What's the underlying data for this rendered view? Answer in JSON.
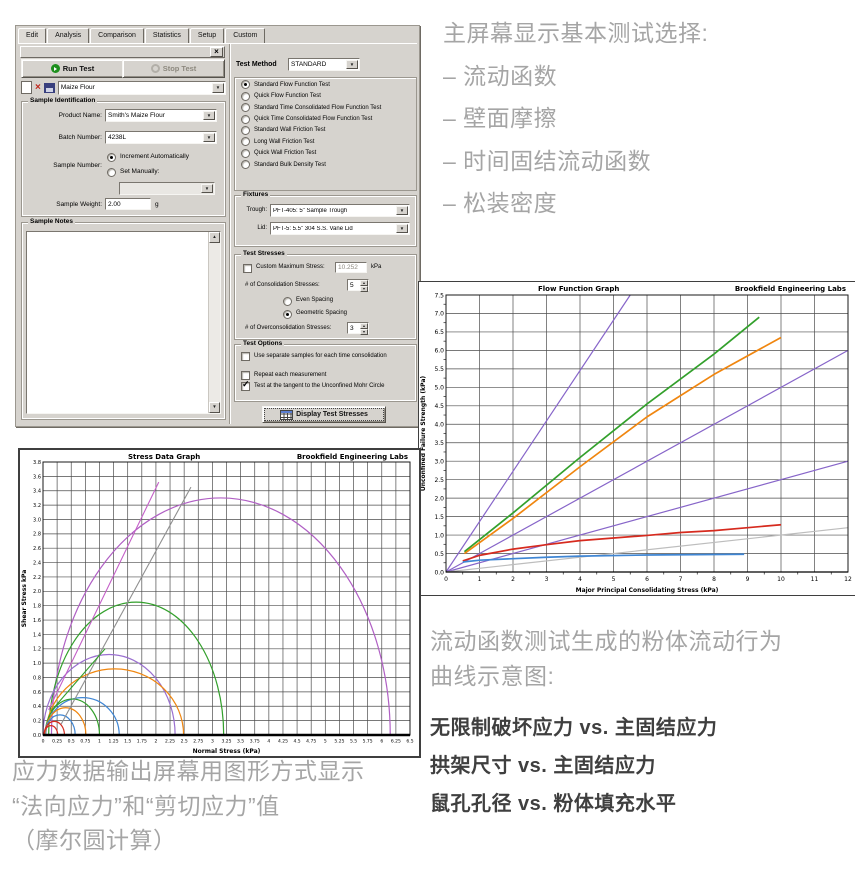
{
  "dialog": {
    "tabs": [
      "Edit",
      "Analysis",
      "Comparison",
      "Statistics",
      "Setup",
      "Custom"
    ],
    "active_tab": "Edit",
    "run_button": "Run Test",
    "stop_button": "Stop Test",
    "preset_dropdown": "Maize Flour",
    "sample_identification": {
      "title": "Sample Identification",
      "product_name_label": "Product Name:",
      "product_name": "Smith's Maize Flour",
      "batch_number_label": "Batch Number:",
      "batch_number": "4238L",
      "sample_number_label": "Sample Number:",
      "increment_option": "Increment Automatically",
      "manual_option": "Set Manually:",
      "sample_weight_label": "Sample Weight:",
      "sample_weight": "2.00",
      "sample_weight_unit": "g"
    },
    "sample_notes_title": "Sample Notes",
    "test_method_label": "Test Method",
    "test_method": "STANDARD",
    "tests": [
      "Standard Flow Function Test",
      "Quick Flow Function Test",
      "Standard Time Consolidated Flow Function Test",
      "Quick Time Consolidated Flow Function Test",
      "Standard Wall Friction Test",
      "Long Wall Friction Test",
      "Quick Wall Friction Test",
      "Standard Bulk Density Test"
    ],
    "selected_test_index": 0,
    "fixtures": {
      "title": "Fixtures",
      "trough_label": "Trough:",
      "trough": "PFT-405: 5\" Sample Trough",
      "lid_label": "Lid:",
      "lid": "PFT-5: 5.5\" 304 S.S. Vane Lid"
    },
    "test_stresses": {
      "title": "Test Stresses",
      "custom_max_label": "Custom Maximum Stress:",
      "custom_max_checked": false,
      "custom_max_value": "10.252",
      "custom_max_unit": "kPa",
      "consolidation_label": "# of Consolidation Stresses:",
      "consolidation_value": "5",
      "even_spacing": "Even Spacing",
      "geometric_spacing": "Geometric Spacing",
      "spacing_selected": "geometric",
      "overconsolidation_label": "# of Overconsolidation Stresses:",
      "overconsolidation_value": "3"
    },
    "test_options": {
      "title": "Test Options",
      "options": [
        {
          "label": "Use separate samples for each time consolidation",
          "checked": false
        },
        {
          "label": "Repeat each measurement",
          "checked": false
        },
        {
          "label": "Test at the tangent to the Unconfined Mohr Circle",
          "checked": true
        }
      ],
      "display_button": "Display Test Stresses"
    }
  },
  "annotations": {
    "top_right": {
      "heading": "主屏幕显示基本测试选择:",
      "items": [
        "– 流动函数",
        "– 壁面摩擦",
        "– 时间固结流动函数",
        "– 松装密度"
      ]
    },
    "bottom_right": {
      "heading": "流动函数测试生成的粉体流动行为\n曲线示意图:",
      "lines": [
        "无限制破坏应力 vs. 主固结应力",
        "拱架尺寸 vs. 主固结应力",
        "鼠孔孔径 vs. 粉体填充水平"
      ]
    },
    "bottom_left": {
      "lines": [
        "应力数据输出屏幕用图形方式显示",
        "“法向应力”和“剪切应力”值",
        "（摩尔圆计算）"
      ]
    }
  },
  "chart_data": [
    {
      "id": "flow",
      "type": "line",
      "title": "Flow Function Graph",
      "corner_label": "Brookfield Engineering Labs",
      "xlabel": "Major Principal Consolidating Stress (kPa)",
      "ylabel": "Unconfined Failure Strength (kPa)",
      "xlim": [
        0,
        12
      ],
      "ylim": [
        0,
        7.5
      ],
      "xstep": 1,
      "ystep": 0.5,
      "grid": true,
      "legend_position": "none",
      "series": [
        {
          "name": "guide-purple-steep",
          "role": "guide",
          "color": "#8765c9",
          "points": [
            [
              0,
              0
            ],
            [
              5.5,
              7.5
            ]
          ]
        },
        {
          "name": "guide-purple-mid",
          "role": "guide",
          "color": "#8765c9",
          "points": [
            [
              0,
              0
            ],
            [
              12,
              6.0
            ]
          ]
        },
        {
          "name": "guide-purple-low",
          "role": "guide",
          "color": "#8765c9",
          "points": [
            [
              0,
              0
            ],
            [
              12,
              3.0
            ]
          ]
        },
        {
          "name": "guide-gray",
          "role": "guide",
          "color": "#bdbdbd",
          "points": [
            [
              0,
              0
            ],
            [
              12,
              1.2
            ]
          ]
        },
        {
          "name": "sample-green",
          "role": "data",
          "color": "#33a02c",
          "points": [
            [
              0.55,
              0.55
            ],
            [
              2,
              1.6
            ],
            [
              4,
              3.1
            ],
            [
              6,
              4.55
            ],
            [
              8,
              5.9
            ],
            [
              9.35,
              6.9
            ]
          ]
        },
        {
          "name": "sample-orange",
          "role": "data",
          "color": "#f0860f",
          "points": [
            [
              0.55,
              0.5
            ],
            [
              2,
              1.45
            ],
            [
              4,
              2.85
            ],
            [
              6,
              4.2
            ],
            [
              8,
              5.35
            ],
            [
              10,
              6.35
            ]
          ]
        },
        {
          "name": "sample-red",
          "role": "data",
          "color": "#d62a1e",
          "points": [
            [
              0.5,
              0.3
            ],
            [
              1,
              0.45
            ],
            [
              2,
              0.62
            ],
            [
              3,
              0.74
            ],
            [
              4,
              0.85
            ],
            [
              5,
              0.92
            ],
            [
              6,
              0.99
            ],
            [
              7,
              1.07
            ],
            [
              8,
              1.12
            ],
            [
              9,
              1.2
            ],
            [
              10,
              1.28
            ]
          ]
        },
        {
          "name": "sample-blue",
          "role": "data",
          "color": "#3f86d4",
          "points": [
            [
              0.5,
              0.27
            ],
            [
              1,
              0.32
            ],
            [
              2,
              0.36
            ],
            [
              3,
              0.4
            ],
            [
              4,
              0.43
            ],
            [
              6,
              0.46
            ],
            [
              8.9,
              0.48
            ]
          ]
        }
      ]
    },
    {
      "id": "stress",
      "type": "mohr",
      "title": "Stress Data Graph",
      "corner_label": "Brookfield Engineering Labs",
      "xlabel": "Normal Stress (kPa)",
      "ylabel": "Shear Stress kPa",
      "xlim": [
        0,
        6.5
      ],
      "ylim": [
        0,
        3.8
      ],
      "xstep": 0.25,
      "ystep": 0.2,
      "grid": true,
      "legend_position": "none",
      "circles": [
        {
          "name": "mohr-purple-large",
          "color": "#b05fc4",
          "cx": 3.15,
          "rx": 3.0,
          "peak": 3.3
        },
        {
          "name": "mohr-green-large",
          "color": "#33a02c",
          "cx": 1.65,
          "rx": 1.55,
          "peak": 1.85
        },
        {
          "name": "mohr-purple-medium",
          "color": "#9a6fd0",
          "cx": 1.17,
          "rx": 1.17,
          "peak": 1.12
        },
        {
          "name": "mohr-orange-medium",
          "color": "#f0860f",
          "cx": 1.27,
          "rx": 1.22,
          "peak": 0.92
        },
        {
          "name": "mohr-blue-medium",
          "color": "#3f86d4",
          "cx": 0.7,
          "rx": 0.65,
          "peak": 0.52
        },
        {
          "name": "mohr-green-small",
          "color": "#33a02c",
          "cx": 0.52,
          "rx": 0.48,
          "peak": 0.5
        },
        {
          "name": "mohr-orange-small",
          "color": "#f0860f",
          "cx": 0.4,
          "rx": 0.36,
          "peak": 0.38
        },
        {
          "name": "mohr-blue-small",
          "color": "#3f86d4",
          "cx": 0.3,
          "rx": 0.27,
          "peak": 0.28
        },
        {
          "name": "mohr-red-outer",
          "color": "#d62a1e",
          "cx": 0.2,
          "rx": 0.18,
          "peak": 0.19
        },
        {
          "name": "mohr-red-inner",
          "color": "#d62a1e",
          "cx": 0.14,
          "rx": 0.12,
          "peak": 0.13
        }
      ],
      "lines": [
        {
          "name": "yield-locus-magenta",
          "color": "#c45fc8",
          "points": [
            [
              0.1,
              0.35
            ],
            [
              2.05,
              3.52
            ]
          ]
        },
        {
          "name": "effective-angle-gray",
          "color": "#8f8f8f",
          "points": [
            [
              0.32,
              0.15
            ],
            [
              2.62,
              3.45
            ]
          ]
        },
        {
          "name": "yield-locus-green",
          "color": "#33a02c",
          "points": [
            [
              0.14,
              0.33
            ],
            [
              1.1,
              1.2
            ]
          ]
        }
      ]
    }
  ]
}
